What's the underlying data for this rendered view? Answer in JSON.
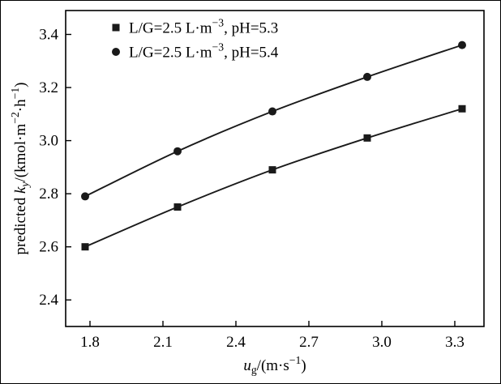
{
  "figure": {
    "background": "#ffffff",
    "border_color": "#000000"
  },
  "chart_data": {
    "type": "line",
    "title": "",
    "x": [
      1.78,
      2.16,
      2.55,
      2.94,
      3.33
    ],
    "series": [
      {
        "name": "L/G=2.5 L·m⁻³, pH=5.3",
        "marker": "square",
        "color": "#1a1a1a",
        "values": [
          2.6,
          2.75,
          2.89,
          3.01,
          3.12
        ],
        "label_parts": [
          {
            "t": "L/G=2.5 L·m"
          },
          {
            "t": "−3",
            "script": "sup"
          },
          {
            "t": ", pH=5.3"
          }
        ]
      },
      {
        "name": "L/G=2.5 L·m⁻³, pH=5.4",
        "marker": "circle",
        "color": "#1a1a1a",
        "values": [
          2.79,
          2.96,
          3.11,
          3.24,
          3.36
        ],
        "label_parts": [
          {
            "t": "L/G=2.5 L·m"
          },
          {
            "t": "−3",
            "script": "sup"
          },
          {
            "t": ", pH=5.4"
          }
        ]
      }
    ],
    "xlabel": "ug/(m·s⁻¹)",
    "xlabel_parts": [
      {
        "t": "u",
        "italic": true
      },
      {
        "t": "g",
        "script": "sub"
      },
      {
        "t": "/(m·s"
      },
      {
        "t": "−1",
        "script": "sup"
      },
      {
        "t": ")"
      }
    ],
    "ylabel": "predicted ky/(kmol·m⁻²·h⁻¹)",
    "ylabel_parts": [
      {
        "t": "predicted "
      },
      {
        "t": "k",
        "italic": true
      },
      {
        "t": "y",
        "script": "sub",
        "italic": true
      },
      {
        "t": "/(kmol·m"
      },
      {
        "t": "−2",
        "script": "sup"
      },
      {
        "t": "·h"
      },
      {
        "t": "−1",
        "script": "sup"
      },
      {
        "t": ")"
      }
    ],
    "xticks": [
      1.8,
      2.1,
      2.4,
      2.7,
      3.0,
      3.3
    ],
    "yticks": [
      2.4,
      2.6,
      2.8,
      3.0,
      3.2,
      3.4
    ],
    "xlim": [
      1.7,
      3.42
    ],
    "ylim": [
      2.3,
      3.49
    ],
    "grid": false,
    "legend_position": "top-left",
    "axis_color": "#000000",
    "line_color": "#1a1a1a",
    "tick_decimals": 1
  }
}
